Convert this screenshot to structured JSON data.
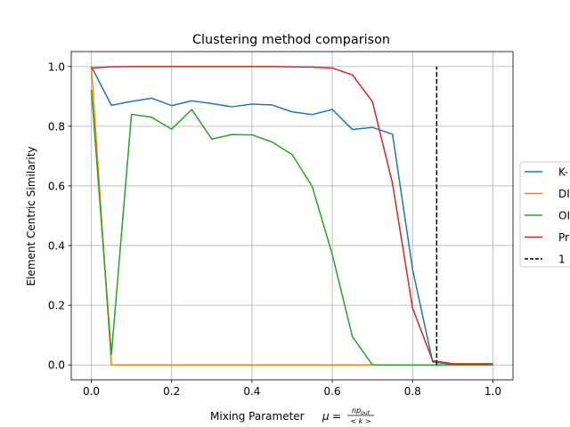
{
  "chart_data": {
    "type": "line",
    "title": "Clustering method comparison",
    "xlabel": "Mixing Parameter",
    "xlabel_math": {
      "mu": "μ",
      "eq": "=",
      "num_base": "np",
      "num_sub": "out",
      "den": "< k >"
    },
    "ylabel": "Element Centric Similarity",
    "xlim": [
      -0.05,
      1.05
    ],
    "ylim": [
      -0.05,
      1.05
    ],
    "xticks": [
      0.0,
      0.2,
      0.4,
      0.6,
      0.8,
      1.0
    ],
    "xtick_labels": [
      "0.0",
      "0.2",
      "0.4",
      "0.6",
      "0.8",
      "1.0"
    ],
    "yticks": [
      0.0,
      0.2,
      0.4,
      0.6,
      0.8,
      1.0
    ],
    "ytick_labels": [
      "0.0",
      "0.2",
      "0.4",
      "0.6",
      "0.8",
      "1.0"
    ],
    "grid": true,
    "legend_position": "center-right (partially cut off)",
    "x": [
      0.0,
      0.05,
      0.1,
      0.15,
      0.2,
      0.25,
      0.3,
      0.35,
      0.4,
      0.45,
      0.5,
      0.55,
      0.6,
      0.65,
      0.7,
      0.75,
      0.8,
      0.85,
      0.9,
      0.95,
      1.0
    ],
    "series": [
      {
        "name": "K-",
        "color": "#1f77b4",
        "values": [
          1.0,
          0.87,
          0.883,
          0.894,
          0.869,
          0.885,
          0.876,
          0.865,
          0.874,
          0.871,
          0.848,
          0.839,
          0.856,
          0.789,
          0.796,
          0.773,
          0.32,
          0.01,
          0.002,
          0.002,
          0.002
        ]
      },
      {
        "name": "DI",
        "color": "#ff7f0e",
        "values": [
          1.0,
          0.0,
          0.0,
          0.0,
          0.0,
          0.0,
          0.0,
          0.0,
          0.0,
          0.0,
          0.0,
          0.0,
          0.0,
          0.0,
          0.0,
          0.0,
          0.0,
          0.0,
          0.0,
          0.0,
          0.0
        ]
      },
      {
        "name": "OI",
        "color": "#2ca02c",
        "values": [
          0.922,
          0.035,
          0.84,
          0.83,
          0.79,
          0.856,
          0.757,
          0.772,
          0.771,
          0.747,
          0.705,
          0.598,
          0.37,
          0.095,
          0.0,
          0.0,
          0.0,
          0.0,
          0.0,
          0.0,
          0.0
        ]
      },
      {
        "name": "Pr",
        "color": "#d62728",
        "values": [
          0.995,
          0.999,
          1.0,
          1.0,
          1.0,
          1.0,
          1.0,
          1.0,
          1.0,
          1.0,
          0.999,
          0.998,
          0.995,
          0.972,
          0.882,
          0.608,
          0.19,
          0.014,
          0.004,
          0.004,
          0.004
        ]
      }
    ],
    "vline": {
      "name": "1",
      "x": 0.86,
      "y_range": [
        0.0,
        1.0
      ],
      "color": "#000000",
      "style": "dashed"
    }
  }
}
